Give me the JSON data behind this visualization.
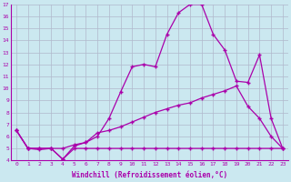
{
  "xlabel": "Windchill (Refroidissement éolien,°C)",
  "background_color": "#cbe8f0",
  "line_color": "#aa00aa",
  "grid_color": "#b0b8cc",
  "xlim": [
    -0.5,
    23.5
  ],
  "ylim": [
    4,
    17
  ],
  "xticks": [
    0,
    1,
    2,
    3,
    4,
    5,
    6,
    7,
    8,
    9,
    10,
    11,
    12,
    13,
    14,
    15,
    16,
    17,
    18,
    19,
    20,
    21,
    22,
    23
  ],
  "yticks": [
    4,
    5,
    6,
    7,
    8,
    9,
    10,
    11,
    12,
    13,
    14,
    15,
    16,
    17
  ],
  "line1_x": [
    0,
    1,
    2,
    3,
    4,
    5,
    6,
    7,
    8,
    9,
    10,
    11,
    12,
    13,
    14,
    15,
    16,
    17,
    18,
    19,
    20,
    21,
    22,
    23
  ],
  "line1_y": [
    6.5,
    5.0,
    4.9,
    5.0,
    4.1,
    5.0,
    5.0,
    5.0,
    5.0,
    5.0,
    5.0,
    5.0,
    5.0,
    5.0,
    5.0,
    5.0,
    5.0,
    5.0,
    5.0,
    5.0,
    5.0,
    5.0,
    5.0,
    5.0
  ],
  "line2_x": [
    0,
    1,
    2,
    3,
    4,
    5,
    6,
    7,
    8,
    9,
    10,
    11,
    12,
    13,
    14,
    15,
    16,
    17,
    18,
    19,
    20,
    21,
    22,
    23
  ],
  "line2_y": [
    6.5,
    5.0,
    5.0,
    5.0,
    5.0,
    5.3,
    5.5,
    6.0,
    7.5,
    9.7,
    11.8,
    12.0,
    11.8,
    14.5,
    16.3,
    17.0,
    17.0,
    14.5,
    13.2,
    10.6,
    10.5,
    12.8,
    7.5,
    5.0
  ],
  "line3_x": [
    0,
    1,
    2,
    3,
    4,
    5,
    6,
    7,
    8,
    9,
    10,
    11,
    12,
    13,
    14,
    15,
    16,
    17,
    18,
    19,
    20,
    21,
    22,
    23
  ],
  "line3_y": [
    6.5,
    5.0,
    5.0,
    5.0,
    4.1,
    5.2,
    5.5,
    6.3,
    6.5,
    6.8,
    7.2,
    7.6,
    8.0,
    8.3,
    8.6,
    8.8,
    9.2,
    9.5,
    9.8,
    10.2,
    8.5,
    7.5,
    6.0,
    5.0
  ]
}
